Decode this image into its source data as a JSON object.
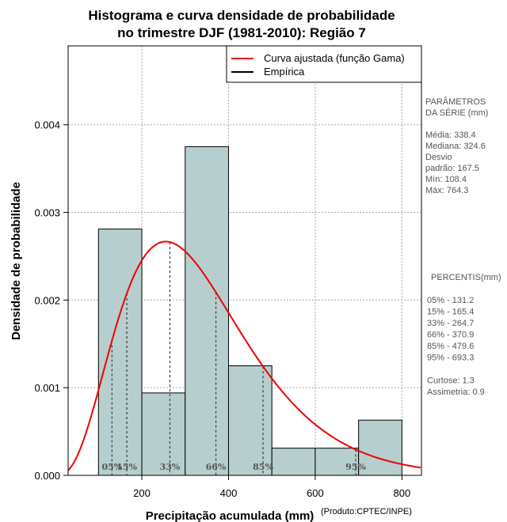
{
  "chart_data": {
    "type": "bar",
    "title_lines": [
      "Histograma e curva densidade de probabilidade",
      "no trimestre DJF (1981-2010): Região 7"
    ],
    "xlabel": "Precipitação acumulada (mm)",
    "ylabel": "Densidade de probabilidade",
    "credit": "(Produto:CPTEC/INPE)",
    "xlim": [
      30,
      845
    ],
    "ylim": [
      0,
      0.0049
    ],
    "xticks": [
      200,
      400,
      600,
      800
    ],
    "yticks": [
      0.0,
      0.001,
      0.002,
      0.003,
      0.004
    ],
    "ytick_labels": [
      "0.000",
      "0.001",
      "0.002",
      "0.003",
      "0.004"
    ],
    "grid": true,
    "bins": [
      {
        "start": 100,
        "end": 200,
        "density": 0.00281
      },
      {
        "start": 200,
        "end": 300,
        "density": 0.00094
      },
      {
        "start": 300,
        "end": 400,
        "density": 0.00375
      },
      {
        "start": 400,
        "end": 500,
        "density": 0.00125
      },
      {
        "start": 500,
        "end": 600,
        "density": 0.00031
      },
      {
        "start": 600,
        "end": 700,
        "density": 0.00031
      },
      {
        "start": 700,
        "end": 800,
        "density": 0.00063
      }
    ],
    "gamma_fit": {
      "shape": 4.07,
      "scale": 83.1
    },
    "percentile_markers": [
      {
        "label": "05%",
        "value": 131.2
      },
      {
        "label": "15%",
        "value": 165.4
      },
      {
        "label": "33%",
        "value": 264.7
      },
      {
        "label": "66%",
        "value": 370.9
      },
      {
        "label": "85%",
        "value": 479.6
      },
      {
        "label": "95%",
        "value": 693.3
      }
    ],
    "legend": {
      "position": "top-right",
      "entries": [
        {
          "label": "Curva ajustada (função Gama)",
          "color": "#ee0000"
        },
        {
          "label": "Empírica",
          "color": "#000000"
        }
      ]
    },
    "colors": {
      "bar_fill": "#b6cece",
      "curve": "#ee0000",
      "grid": "#aaaaaa",
      "marker": "#444444"
    }
  },
  "side_panel": {
    "params_lines": [
      "PARÂMETROS",
      " DA SÉRIE (mm)",
      "",
      "Média:  338.4",
      "Mediana:  324.6",
      "Desvio",
      "padrão:  167.5",
      "Mín:  108.4",
      "Máx:  764.3"
    ],
    "percentis_lines": [
      "PERCENTIS(mm)",
      "",
      "05% -   131.2",
      "15% -   165.4",
      "33% -   264.7",
      "66% -   370.9",
      "85% -   479.6",
      "95% -   693.3",
      "",
      "Curtose:  1.3",
      "Assimetria:  0.9"
    ]
  }
}
